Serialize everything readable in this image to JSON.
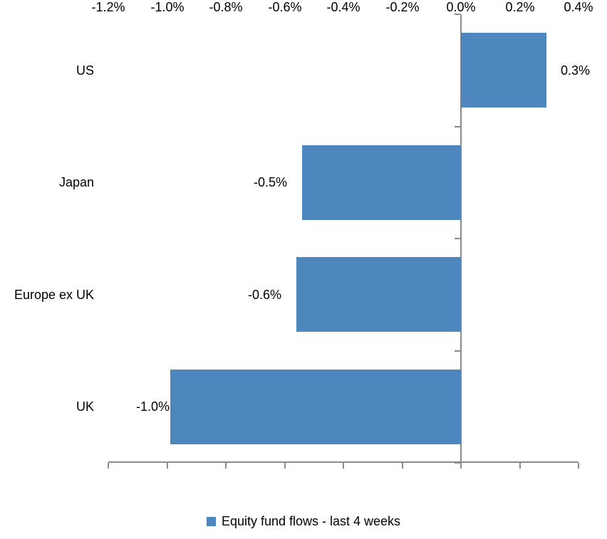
{
  "chart_data": {
    "type": "bar",
    "orientation": "horizontal",
    "categories": [
      "US",
      "Japan",
      "Europe ex UK",
      "UK"
    ],
    "values": [
      0.29,
      -0.54,
      -0.56,
      -0.99
    ],
    "value_labels": [
      "0.3%",
      "-0.5%",
      "-0.6%",
      "-1.0%"
    ],
    "x_axis": {
      "min": -1.2,
      "max": 0.4,
      "tick_step": 0.2,
      "tick_labels": [
        "-1.2%",
        "-1.0%",
        "-0.8%",
        "-0.6%",
        "-0.4%",
        "-0.2%",
        "0.0%",
        "0.2%",
        "0.4%"
      ],
      "format": "percent"
    },
    "grid": false,
    "legend": {
      "position": "bottom",
      "entries": [
        "Equity fund flows - last 4 weeks"
      ]
    },
    "colors": {
      "bar": "#4E87BE",
      "axis": "#8B8B8B",
      "text": "#000000"
    }
  }
}
